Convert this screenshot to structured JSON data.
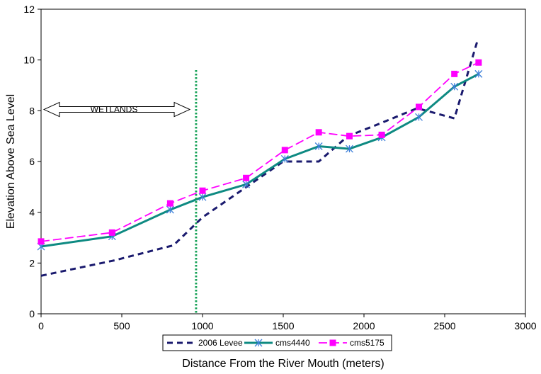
{
  "chart_data": {
    "type": "line",
    "title": "",
    "xlabel": "Distance From the  River Mouth (meters)",
    "ylabel": "Elevation Above Sea Level",
    "xlim": [
      0,
      3000
    ],
    "ylim": [
      0,
      12
    ],
    "xticks": [
      0,
      500,
      1000,
      1500,
      2000,
      2500,
      3000
    ],
    "yticks": [
      0,
      2,
      4,
      6,
      8,
      10,
      12
    ],
    "grid": false,
    "legend_position": "bottom",
    "series": [
      {
        "name": "2006 Levee",
        "color": "#1a1a6e",
        "style": "dashed",
        "marker": "none",
        "x": [
          0,
          450,
          820,
          1000,
          1250,
          1500,
          1720,
          1900,
          2100,
          2330,
          2560,
          2700
        ],
        "y": [
          1.5,
          2.1,
          2.7,
          3.8,
          4.9,
          6.0,
          6.0,
          7.0,
          7.5,
          8.1,
          7.7,
          10.7
        ]
      },
      {
        "name": "cms4440",
        "color": "#0e8a82",
        "style": "solid",
        "marker": "asterisk",
        "x": [
          0,
          440,
          800,
          1000,
          1270,
          1510,
          1720,
          1910,
          2110,
          2340,
          2560,
          2710
        ],
        "y": [
          2.65,
          3.05,
          4.1,
          4.6,
          5.1,
          6.1,
          6.6,
          6.5,
          6.95,
          7.75,
          8.95,
          9.45
        ]
      },
      {
        "name": "cms5175",
        "color": "#ff00ff",
        "style": "dashed",
        "marker": "square",
        "x": [
          0,
          440,
          800,
          1000,
          1270,
          1510,
          1720,
          1910,
          2110,
          2340,
          2560,
          2710
        ],
        "y": [
          2.85,
          3.2,
          4.35,
          4.85,
          5.35,
          6.45,
          7.15,
          7.0,
          7.05,
          8.15,
          9.45,
          9.9
        ]
      }
    ],
    "vertical_line": {
      "x": 960,
      "color": "#1aa35a",
      "style": "dotted"
    },
    "annotation": {
      "text": "WETLANDS",
      "x_start": 0,
      "x_end": 930,
      "y": 8.05
    }
  }
}
